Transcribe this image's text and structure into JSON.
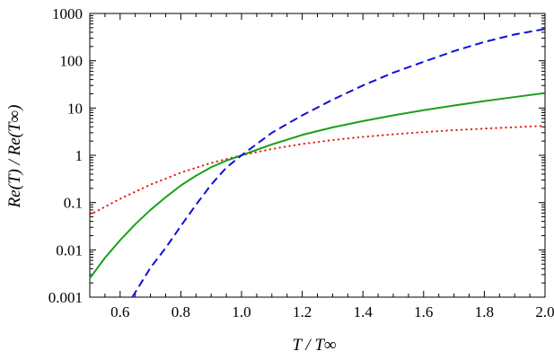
{
  "chart_data": {
    "type": "line",
    "title": "",
    "xlabel": "T / T∞",
    "ylabel": "Re(T) / Re(T∞)",
    "xlim": [
      0.5,
      2.0
    ],
    "ylim": [
      0.001,
      1000
    ],
    "yscale": "log",
    "grid": false,
    "x_ticks": [
      0.6,
      0.8,
      1.0,
      1.2,
      1.4,
      1.6,
      1.8,
      2.0
    ],
    "x_tick_labels": [
      "0.6",
      "0.8",
      "1.0",
      "1.2",
      "1.4",
      "1.6",
      "1.8",
      "2.0"
    ],
    "y_ticks": [
      0.001,
      0.01,
      0.1,
      1,
      10,
      100,
      1000
    ],
    "y_tick_labels": [
      "0.001",
      "0.01",
      "0.1",
      "1",
      "10",
      "100",
      "1000"
    ],
    "series": [
      {
        "style": "dotted",
        "color": "#e0190f",
        "x": [
          0.5,
          0.6,
          0.7,
          0.8,
          0.9,
          1.0,
          1.1,
          1.2,
          1.3,
          1.4,
          1.5,
          1.6,
          1.7,
          1.8,
          1.9,
          2.0
        ],
        "y": [
          0.055,
          0.12,
          0.24,
          0.43,
          0.69,
          1.0,
          1.36,
          1.74,
          2.1,
          2.45,
          2.78,
          3.1,
          3.4,
          3.67,
          3.93,
          4.2
        ]
      },
      {
        "style": "solid",
        "color": "#1aa01a",
        "x": [
          0.5,
          0.55,
          0.6,
          0.65,
          0.7,
          0.75,
          0.8,
          0.85,
          0.9,
          0.95,
          1.0,
          1.1,
          1.2,
          1.3,
          1.4,
          1.5,
          1.6,
          1.7,
          1.8,
          1.9,
          2.0
        ],
        "y": [
          0.0025,
          0.0068,
          0.016,
          0.035,
          0.07,
          0.13,
          0.23,
          0.37,
          0.56,
          0.77,
          1.0,
          1.7,
          2.7,
          3.9,
          5.3,
          7.0,
          9.0,
          11.3,
          14.0,
          17.1,
          20.8
        ]
      },
      {
        "style": "dashed",
        "color": "#1010d8",
        "x": [
          0.64,
          0.7,
          0.75,
          0.8,
          0.85,
          0.9,
          0.95,
          1.0,
          1.1,
          1.2,
          1.3,
          1.4,
          1.5,
          1.6,
          1.7,
          1.8,
          1.9,
          2.0
        ],
        "y": [
          0.001,
          0.0042,
          0.011,
          0.032,
          0.09,
          0.24,
          0.55,
          1.0,
          3.0,
          7.0,
          15,
          30,
          56,
          95,
          160,
          250,
          360,
          470
        ]
      }
    ]
  }
}
